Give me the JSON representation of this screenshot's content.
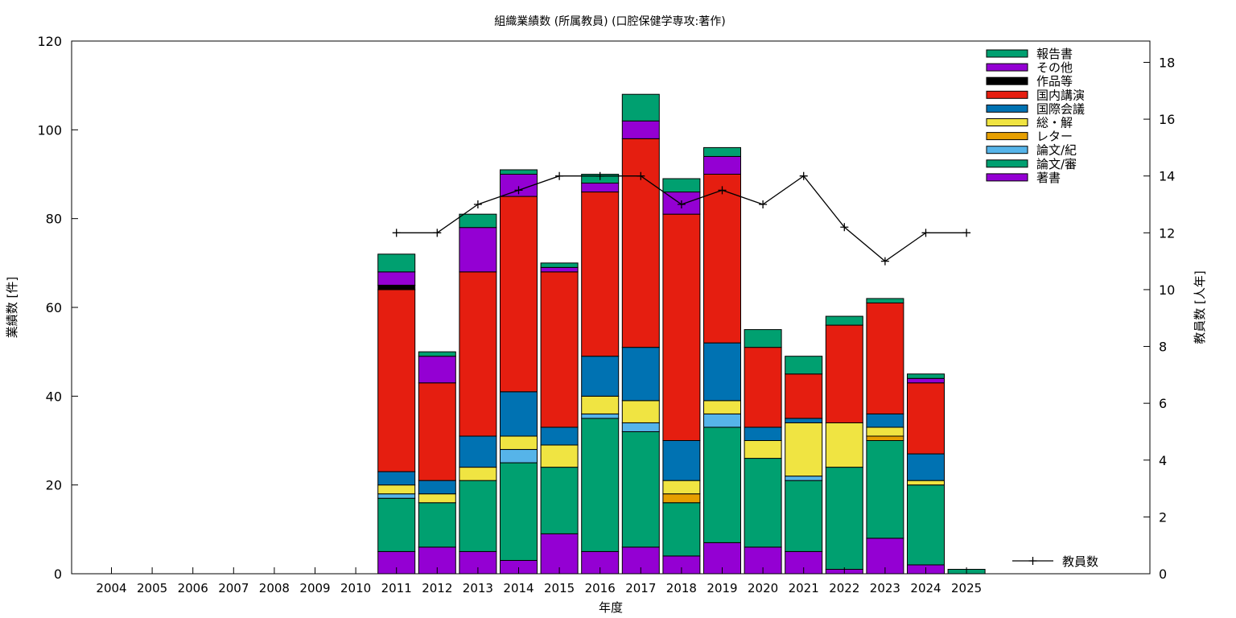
{
  "chart_data": {
    "type": "bar",
    "stacked": true,
    "title": "組織業績数 (所属教員) (口腔保健学専攻:著作)",
    "xlabel": "年度",
    "ylabel": "業績数 [件]",
    "y2label": "教員数 [人年]",
    "ylim": [
      0,
      120
    ],
    "yticks": [
      0,
      20,
      40,
      60,
      80,
      100,
      120
    ],
    "y2lim": [
      0,
      18.75
    ],
    "y2ticks": [
      0,
      2,
      4,
      6,
      8,
      10,
      12,
      14,
      16,
      18
    ],
    "legend_position": "top-right",
    "categories": [
      "2004",
      "2005",
      "2006",
      "2007",
      "2008",
      "2009",
      "2010",
      "2011",
      "2012",
      "2013",
      "2014",
      "2015",
      "2016",
      "2017",
      "2018",
      "2019",
      "2020",
      "2021",
      "2022",
      "2023",
      "2024",
      "2025"
    ],
    "series": [
      {
        "name": "著書",
        "color": "#9400d3",
        "values": [
          0,
          0,
          0,
          0,
          0,
          0,
          0,
          5,
          6,
          5,
          3,
          9,
          5,
          6,
          4,
          7,
          6,
          5,
          1,
          8,
          2,
          0
        ]
      },
      {
        "name": "論文/審",
        "color": "#00a070",
        "values": [
          0,
          0,
          0,
          0,
          0,
          0,
          0,
          12,
          10,
          16,
          22,
          15,
          30,
          26,
          12,
          26,
          20,
          16,
          23,
          22,
          18,
          1
        ]
      },
      {
        "name": "論文/紀",
        "color": "#56b4e9",
        "values": [
          0,
          0,
          0,
          0,
          0,
          0,
          0,
          1,
          0,
          0,
          3,
          0,
          1,
          2,
          0,
          3,
          0,
          1,
          0,
          0,
          0,
          0
        ]
      },
      {
        "name": "レター",
        "color": "#e69f00",
        "values": [
          0,
          0,
          0,
          0,
          0,
          0,
          0,
          0,
          0,
          0,
          0,
          0,
          0,
          0,
          2,
          0,
          0,
          0,
          0,
          1,
          0,
          0
        ]
      },
      {
        "name": "総・解",
        "color": "#f0e442",
        "values": [
          0,
          0,
          0,
          0,
          0,
          0,
          0,
          2,
          2,
          3,
          3,
          5,
          4,
          5,
          3,
          3,
          4,
          12,
          10,
          2,
          1,
          0
        ]
      },
      {
        "name": "国際会議",
        "color": "#0072b2",
        "values": [
          0,
          0,
          0,
          0,
          0,
          0,
          0,
          3,
          3,
          7,
          10,
          4,
          9,
          12,
          9,
          13,
          3,
          1,
          0,
          3,
          6,
          0
        ]
      },
      {
        "name": "国内講演",
        "color": "#e51e10",
        "values": [
          0,
          0,
          0,
          0,
          0,
          0,
          0,
          41,
          22,
          37,
          44,
          35,
          37,
          47,
          51,
          38,
          18,
          10,
          22,
          25,
          16,
          0
        ]
      },
      {
        "name": "作品等",
        "color": "#000000",
        "values": [
          0,
          0,
          0,
          0,
          0,
          0,
          0,
          1,
          0,
          0,
          0,
          0,
          0,
          0,
          0,
          0,
          0,
          0,
          0,
          0,
          0,
          0
        ]
      },
      {
        "name": "その他",
        "color": "#9400d3",
        "values": [
          0,
          0,
          0,
          0,
          0,
          0,
          0,
          3,
          6,
          10,
          5,
          1,
          2,
          4,
          5,
          4,
          0,
          0,
          0,
          0,
          1,
          0
        ]
      },
      {
        "name": "報告書",
        "color": "#00a070",
        "values": [
          0,
          0,
          0,
          0,
          0,
          0,
          0,
          4,
          1,
          3,
          1,
          1,
          2,
          6,
          3,
          2,
          4,
          4,
          2,
          1,
          1,
          0
        ]
      }
    ],
    "line_series": {
      "name": "教員数",
      "color": "#000000",
      "axis": "right",
      "x": [
        "2011",
        "2012",
        "2013",
        "2014",
        "2015",
        "2016",
        "2017",
        "2018",
        "2019",
        "2020",
        "2021",
        "2022",
        "2023",
        "2024",
        "2025"
      ],
      "values": [
        12,
        12,
        13,
        13.5,
        14,
        14,
        14,
        13,
        13.5,
        13,
        14,
        12.2,
        11,
        12,
        12
      ]
    }
  }
}
